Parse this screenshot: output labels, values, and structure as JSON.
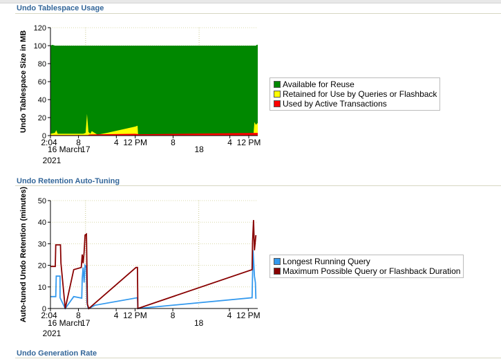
{
  "sections": {
    "usage_title": "Undo Tablespace Usage",
    "retention_title": "Undo Retention Auto-Tuning",
    "generation_title": "Undo Generation Rate"
  },
  "colors": {
    "available": "#008800",
    "retained": "#ffff00",
    "used": "#ff0000",
    "longest": "#3399ee",
    "maximum": "#880000"
  },
  "chart_data": [
    {
      "type": "area",
      "title": "",
      "ylabel": "Undo Tablespace Size in MB",
      "xlabel": "",
      "ylim": [
        0,
        120
      ],
      "yticks": [
        "0",
        "20",
        "40",
        "60",
        "80",
        "100",
        "120"
      ],
      "xlim_hours": [
        2.07,
        45.9
      ],
      "x_axis_labels": [
        {
          "t": 2.07,
          "label": "2:04"
        },
        {
          "t": 8,
          "label": "8"
        },
        {
          "t": 16,
          "label": "4"
        },
        {
          "t": 20,
          "label": "12 PM"
        },
        {
          "t": 28,
          "label": "8"
        },
        {
          "t": 40,
          "label": "4"
        },
        {
          "t": 44,
          "label": "12 PM"
        }
      ],
      "date_labels": [
        {
          "t": 2.07,
          "label": "16 March",
          "year": "2021"
        },
        {
          "t": 9.5,
          "label": "17"
        },
        {
          "t": 33.5,
          "label": "18"
        }
      ],
      "legend": [
        "Available for Reuse",
        "Retained for Use by Queries or Flashback",
        "Used by Active Transactions"
      ],
      "series": [
        {
          "name": "Used by Active Transactions",
          "color": "#ff0000",
          "points": [
            [
              2.07,
              0.5
            ],
            [
              10,
              0.5
            ],
            [
              10.3,
              1.2
            ],
            [
              20,
              2
            ],
            [
              21,
              1.5
            ],
            [
              45.5,
              3
            ],
            [
              45.9,
              3
            ]
          ]
        },
        {
          "name": "Retained for Use by Queries or Flashback",
          "color": "#ffff00",
          "points": [
            [
              2.07,
              2
            ],
            [
              3,
              3
            ],
            [
              3.3,
              6
            ],
            [
              3.6,
              2
            ],
            [
              9,
              2
            ],
            [
              9.5,
              3
            ],
            [
              9.8,
              24
            ],
            [
              10.1,
              4
            ],
            [
              10.5,
              2
            ],
            [
              10.8,
              5
            ],
            [
              12,
              1
            ],
            [
              14,
              3
            ],
            [
              20,
              10
            ],
            [
              20.5,
              11
            ],
            [
              20.6,
              1
            ],
            [
              45,
              1
            ],
            [
              45.2,
              15
            ],
            [
              45.5,
              12
            ],
            [
              45.9,
              14
            ]
          ]
        },
        {
          "name": "Available for Reuse",
          "color": "#008800",
          "points": [
            [
              2.07,
              100
            ],
            [
              2.5,
              101
            ],
            [
              3,
              100
            ],
            [
              45.5,
              100
            ],
            [
              45.7,
              101
            ],
            [
              45.9,
              101
            ]
          ]
        }
      ]
    },
    {
      "type": "line",
      "title": "",
      "ylabel": "Auto-tuned Undo Retention (minutes)",
      "xlabel": "",
      "ylim": [
        0,
        50
      ],
      "yticks": [
        "0",
        "10",
        "20",
        "30",
        "40",
        "50"
      ],
      "xlim_hours": [
        2.07,
        46
      ],
      "x_axis_labels": [
        {
          "t": 2.07,
          "label": "2:04"
        },
        {
          "t": 8,
          "label": "8"
        },
        {
          "t": 16,
          "label": "4"
        },
        {
          "t": 20,
          "label": "12 PM"
        },
        {
          "t": 28,
          "label": "8"
        },
        {
          "t": 40,
          "label": "4"
        },
        {
          "t": 44,
          "label": "12 PM"
        }
      ],
      "date_labels": [
        {
          "t": 2.07,
          "label": "16 March",
          "year": "2021"
        },
        {
          "t": 9.5,
          "label": "17"
        },
        {
          "t": 33.5,
          "label": "18"
        }
      ],
      "legend": [
        "Longest Running Query",
        "Maximum Possible Query or Flashback Duration"
      ],
      "series": [
        {
          "name": "Longest Running Query",
          "color": "#3399ee",
          "points": [
            [
              2.07,
              5.5
            ],
            [
              3.2,
              5.5
            ],
            [
              3.3,
              15
            ],
            [
              4.1,
              15
            ],
            [
              4.1,
              5
            ],
            [
              5.2,
              0
            ],
            [
              7,
              5.5
            ],
            [
              8.7,
              4.8
            ],
            [
              8.8,
              14
            ],
            [
              9,
              19
            ],
            [
              9.2,
              12
            ],
            [
              9.4,
              20
            ],
            [
              9.7,
              19
            ],
            [
              9.8,
              3
            ],
            [
              10,
              0.5
            ],
            [
              10.2,
              0
            ],
            [
              11.5,
              1.5
            ],
            [
              20.5,
              5
            ],
            [
              20.6,
              0
            ],
            [
              44.8,
              5
            ],
            [
              45,
              27
            ],
            [
              45.3,
              15
            ],
            [
              45.5,
              12
            ],
            [
              45.6,
              4.5
            ]
          ]
        },
        {
          "name": "Maximum Possible Query or Flashback Duration",
          "color": "#880000",
          "points": [
            [
              2.07,
              19.5
            ],
            [
              3.1,
              19.5
            ],
            [
              3.2,
              29.5
            ],
            [
              4.2,
              29.5
            ],
            [
              4.3,
              21
            ],
            [
              5.2,
              0
            ],
            [
              7,
              18
            ],
            [
              8.6,
              19
            ],
            [
              8.8,
              25
            ],
            [
              9,
              21
            ],
            [
              9.2,
              26
            ],
            [
              9.4,
              34
            ],
            [
              9.7,
              34.5
            ],
            [
              9.9,
              2
            ],
            [
              10.2,
              0
            ],
            [
              20.2,
              19
            ],
            [
              20.5,
              19
            ],
            [
              20.6,
              0
            ],
            [
              44.8,
              18
            ],
            [
              44.9,
              31
            ],
            [
              45.1,
              41
            ],
            [
              45.3,
              27
            ],
            [
              45.6,
              34
            ]
          ]
        }
      ]
    }
  ]
}
